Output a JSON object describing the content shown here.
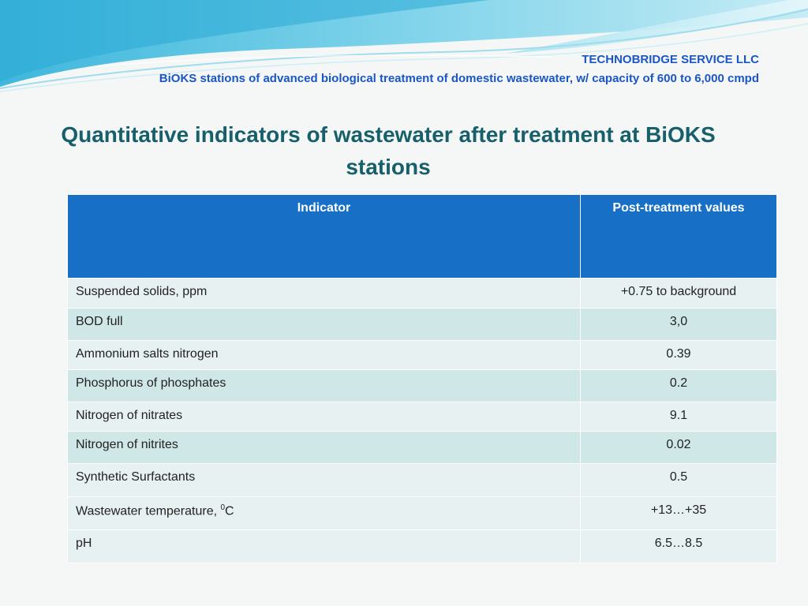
{
  "header": {
    "company": "TECHNOBRIDGE SERVICE LLC",
    "subtitle": "BiOKS stations of advanced biological treatment of domestic wastewater, w/ capacity of 600 to 6,000 cmpd"
  },
  "title": "Quantitative indicators of wastewater after treatment at BiOKS stations",
  "table": {
    "headers": [
      "Indicator",
      "Post-treatment values"
    ],
    "rows": [
      {
        "indicator": "Suspended solids, ppm",
        "value": "+0.75 to background"
      },
      {
        "indicator": "BOD full",
        "value": "3,0"
      },
      {
        "indicator": "Ammonium salts nitrogen",
        "value": "0.39"
      },
      {
        "indicator": "Phosphorus of phosphates",
        "value": "0.2"
      },
      {
        "indicator": "Nitrogen of nitrates",
        "value": "9.1"
      },
      {
        "indicator": "Nitrogen of nitrites",
        "value": "0.02"
      },
      {
        "indicator": "Synthetic Surfactants",
        "value": "0.5"
      },
      {
        "indicator": "Wastewater temperature, ",
        "indicator_sup": "0",
        "indicator_suffix": "C",
        "value": "+13…+35"
      },
      {
        "indicator": "pH",
        "value": "6.5…8.5"
      }
    ]
  },
  "colors": {
    "header_text": "#1a56c4",
    "title_text": "#17606b",
    "table_header_bg": "#1870c6",
    "row_light": "#e7f1f1",
    "row_dark": "#d0e7e8"
  }
}
